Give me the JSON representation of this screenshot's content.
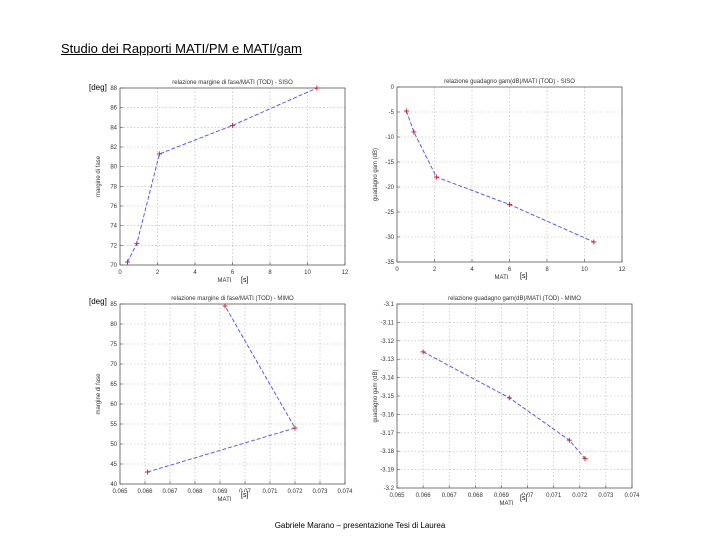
{
  "slide": {
    "title": "Studio dei Rapporti MATI/PM e MATI/gam",
    "footer": "Gabriele Marano – presentazione Tesi di Laurea",
    "overlay": {
      "deg_tag_top": "[deg]",
      "deg_tag_bottom": "[deg]",
      "s_unit_p1": "[s]",
      "s_unit_p2": "[s]",
      "s_unit_p3": "[s]",
      "s_unit_p4": "[s]"
    }
  },
  "chart_data": [
    {
      "type": "line",
      "title": "relazione margine di fase/MATI (TOD) - SISO",
      "xlabel": "MATI",
      "ylabel": "margine di fase",
      "xlim": [
        0,
        12
      ],
      "ylim": [
        70,
        88
      ],
      "xticks": [
        0,
        2,
        4,
        6,
        8,
        10,
        12
      ],
      "yticks": [
        70,
        72,
        74,
        76,
        78,
        80,
        82,
        84,
        86,
        88
      ],
      "xtick_labels": [
        "0",
        "2",
        "4",
        "6",
        "8",
        "10",
        "12"
      ],
      "ytick_labels": [
        "70",
        "72",
        "74",
        "76",
        "78",
        "80",
        "82",
        "84",
        "86",
        "88"
      ],
      "grid": true,
      "color": "#4a4aff",
      "marker_color": "#d11a2a",
      "series": [
        {
          "x": [
            0.4,
            0.9,
            2.1,
            6.0,
            10.5
          ],
          "y": [
            70.3,
            72.2,
            81.3,
            84.2,
            88.0
          ]
        }
      ]
    },
    {
      "type": "line",
      "title": "relazione guadagno gam(dB)/MATI (TOD) - SISO",
      "xlabel": "MATI",
      "ylabel": "guadagno gam (dB)",
      "xlim": [
        0,
        12
      ],
      "ylim": [
        -35,
        0
      ],
      "xticks": [
        0,
        2,
        4,
        6,
        8,
        10,
        12
      ],
      "yticks": [
        -35,
        -30,
        -25,
        -20,
        -15,
        -10,
        -5,
        0
      ],
      "xtick_labels": [
        "0",
        "2",
        "4",
        "6",
        "8",
        "10",
        "12"
      ],
      "ytick_labels": [
        "-35",
        "-30",
        "-25",
        "-20",
        "-15",
        "-10",
        "-5",
        "0"
      ],
      "grid": true,
      "color": "#4a4aff",
      "marker_color": "#d11a2a",
      "series": [
        {
          "x": [
            0.5,
            0.9,
            2.1,
            6.0,
            10.5
          ],
          "y": [
            -4.8,
            -9.0,
            -18.0,
            -23.5,
            -31.0
          ]
        }
      ]
    },
    {
      "type": "line",
      "title": "relazione margine di fase/MATI (TOD) - MIMO",
      "xlabel": "MATI",
      "ylabel": "margine di fase",
      "xlim": [
        0.065,
        0.074
      ],
      "ylim": [
        40,
        85
      ],
      "xticks": [
        0.065,
        0.066,
        0.067,
        0.068,
        0.069,
        0.07,
        0.071,
        0.072,
        0.073,
        0.074
      ],
      "yticks": [
        40,
        45,
        50,
        55,
        60,
        65,
        70,
        75,
        80,
        85
      ],
      "xtick_labels": [
        "0.065",
        "0.066",
        "0.067",
        "0.068",
        "0.069",
        "0.07",
        "0.071",
        "0.072",
        "0.073",
        "0.074"
      ],
      "ytick_labels": [
        "40",
        "45",
        "50",
        "55",
        "60",
        "65",
        "70",
        "75",
        "80",
        "85"
      ],
      "grid": true,
      "color": "#4a4aff",
      "marker_color": "#d11a2a",
      "series": [
        {
          "x": [
            0.0661,
            0.072,
            0.0692
          ],
          "y": [
            43.0,
            54.0,
            84.5
          ]
        }
      ]
    },
    {
      "type": "line",
      "title": "relazione guadagno gam(dB)/MATI (TOD) - MIMO",
      "xlabel": "MATI",
      "ylabel": "guadagno gam (dB)",
      "xlim": [
        0.065,
        0.074
      ],
      "ylim": [
        -3.2,
        -3.1
      ],
      "xticks": [
        0.065,
        0.066,
        0.067,
        0.068,
        0.069,
        0.07,
        0.071,
        0.072,
        0.073,
        0.074
      ],
      "yticks": [
        -3.2,
        -3.19,
        -3.18,
        -3.17,
        -3.16,
        -3.15,
        -3.14,
        -3.13,
        -3.12,
        -3.11,
        -3.1
      ],
      "xtick_labels": [
        "0.065",
        "0.066",
        "0.067",
        "0.068",
        "0.069",
        "0.07",
        "0.071",
        "0.072",
        "0.073",
        "0.074"
      ],
      "ytick_labels": [
        "-3.2",
        "-3.19",
        "-3.18",
        "-3.17",
        "-3.16",
        "-3.15",
        "-3.14",
        "-3.13",
        "-3.12",
        "-3.11",
        "-3.1"
      ],
      "grid": true,
      "color": "#4a4aff",
      "marker_color": "#d11a2a",
      "series": [
        {
          "x": [
            0.066,
            0.0693,
            0.0716,
            0.0722
          ],
          "y": [
            -3.126,
            -3.151,
            -3.174,
            -3.184
          ]
        }
      ]
    }
  ]
}
